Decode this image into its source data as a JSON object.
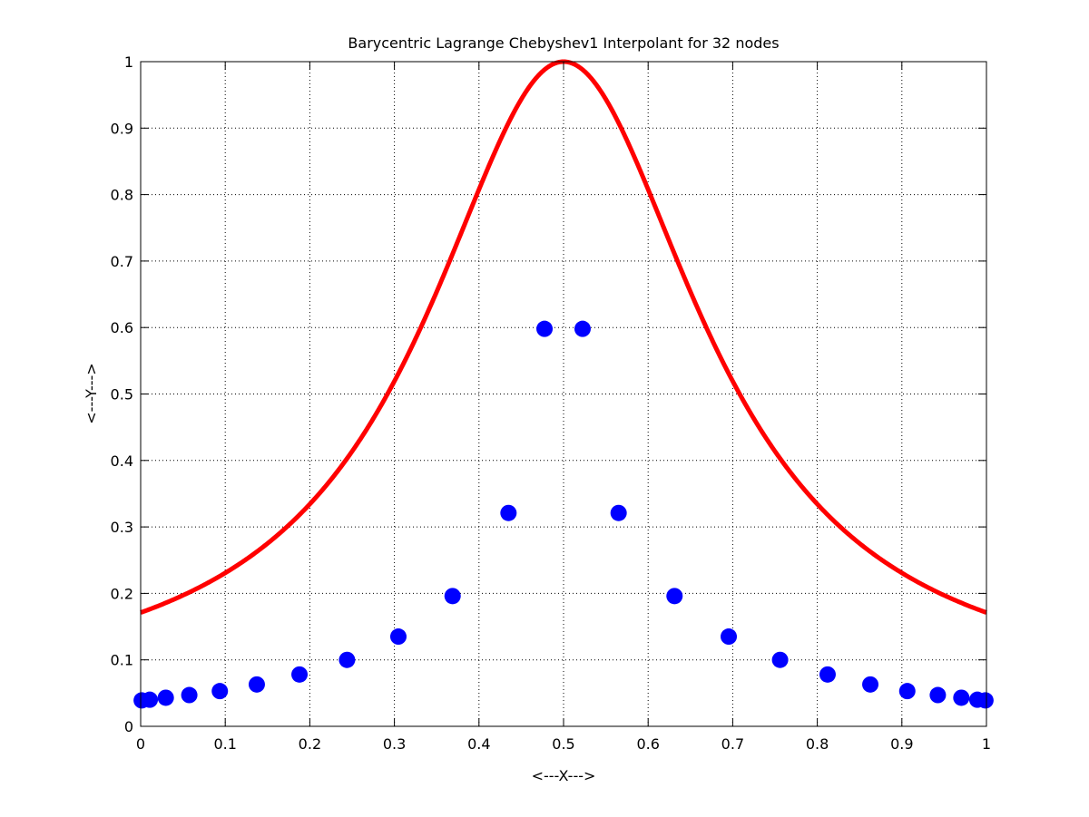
{
  "chart_data": {
    "type": "line",
    "title": "Barycentric Lagrange Chebyshev1 Interpolant for 32 nodes",
    "xlabel": "<---X--->",
    "ylabel": "<---Y--->",
    "xlim": [
      0,
      1
    ],
    "ylim": [
      0,
      1
    ],
    "x_ticks": [
      0,
      0.1,
      0.2,
      0.3,
      0.4,
      0.5,
      0.6,
      0.7,
      0.8,
      0.9,
      1
    ],
    "x_tick_labels": [
      "0",
      "0.1",
      "0.2",
      "0.3",
      "0.4",
      "0.5",
      "0.6",
      "0.7",
      "0.8",
      "0.9",
      "1"
    ],
    "y_ticks": [
      0,
      0.1,
      0.2,
      0.3,
      0.4,
      0.5,
      0.6,
      0.7,
      0.8,
      0.9,
      1
    ],
    "y_tick_labels": [
      "0",
      "0.1",
      "0.2",
      "0.3",
      "0.4",
      "0.5",
      "0.6",
      "0.7",
      "0.8",
      "0.9",
      "1"
    ],
    "grid": true,
    "series": [
      {
        "kind": "scatter",
        "color": "#0000ff",
        "x": [
          0.0012,
          0.0108,
          0.0297,
          0.0575,
          0.0936,
          0.1373,
          0.1878,
          0.244,
          0.3047,
          0.3688,
          0.4349,
          0.4775,
          0.5225,
          0.5651,
          0.6312,
          0.6953,
          0.756,
          0.8122,
          0.8627,
          0.9064,
          0.9425,
          0.9703,
          0.9892,
          0.9988
        ],
        "y": [
          0.039,
          0.04,
          0.043,
          0.047,
          0.053,
          0.063,
          0.078,
          0.1,
          0.135,
          0.196,
          0.321,
          0.598,
          0.598,
          0.321,
          0.196,
          0.135,
          0.1,
          0.078,
          0.063,
          0.053,
          0.047,
          0.043,
          0.04,
          0.039
        ]
      },
      {
        "kind": "curve",
        "color": "#ff0000",
        "function_peak": 1.0,
        "function_base": 0.0385,
        "function_center": 0.5,
        "function_scale": 25
      }
    ]
  }
}
